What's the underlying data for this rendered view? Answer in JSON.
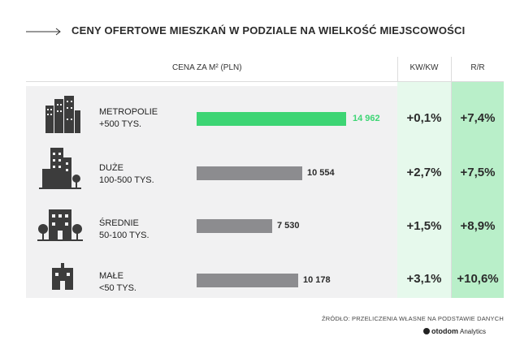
{
  "title": "CENY OFERTOWE MIESZKAŃ W PODZIALE NA WIELKOŚĆ MIEJSCOWOŚCI",
  "headers": {
    "price": "CENA ZA M² (PLN)",
    "kw_kw": "KW/KW",
    "r_r": "R/R"
  },
  "rows": [
    {
      "label1": "METROPOLIE",
      "label2": "+500 TYS.",
      "value_label": "14 962",
      "kw": "+0,1%",
      "rr": "+7,4%",
      "icon": "metropolis-buildings-icon"
    },
    {
      "label1": "DUŻE",
      "label2": "100-500 TYS.",
      "value_label": "10 554",
      "kw": "+2,7%",
      "rr": "+7,5%",
      "icon": "large-city-buildings-icon"
    },
    {
      "label1": "ŚREDNIE",
      "label2": "50-100 TYS.",
      "value_label": "7 530",
      "kw": "+1,5%",
      "rr": "+8,9%",
      "icon": "medium-town-buildings-icon"
    },
    {
      "label1": "MAŁE",
      "label2": "<50 TYS.",
      "value_label": "10 178",
      "kw": "+3,1%",
      "rr": "+10,6%",
      "icon": "small-town-house-icon"
    }
  ],
  "source": "ŹRÓDŁO: PRZELICZENIA WŁASNE NA PODSTAWIE DANYCH",
  "logo": {
    "name": "otodom",
    "sub": "Analytics"
  },
  "colors": {
    "highlight_bar": "#3dd574",
    "bar": "#8c8c8f",
    "highlight_text": "#3dd574",
    "kw_bg": "#e6f9ec",
    "rr_bg": "#b9efc9"
  },
  "chart_data": {
    "type": "bar",
    "orientation": "horizontal",
    "title": "CENY OFERTOWE MIESZKAŃ W PODZIALE NA WIELKOŚĆ MIEJSCOWOŚCI",
    "categories": [
      "METROPOLIE +500 TYS.",
      "DUŻE 100-500 TYS.",
      "ŚREDNIE 50-100 TYS.",
      "MAŁE <50 TYS."
    ],
    "values": [
      14962,
      10554,
      7530,
      10178
    ],
    "unit": "CENA ZA M² (PLN)",
    "highlight_index": 0,
    "table_columns": {
      "KW/KW": [
        "+0,1%",
        "+2,7%",
        "+1,5%",
        "+3,1%"
      ],
      "R/R": [
        "+7,4%",
        "+7,5%",
        "+8,9%",
        "+10,6%"
      ]
    },
    "grid": false,
    "legend": "none"
  }
}
